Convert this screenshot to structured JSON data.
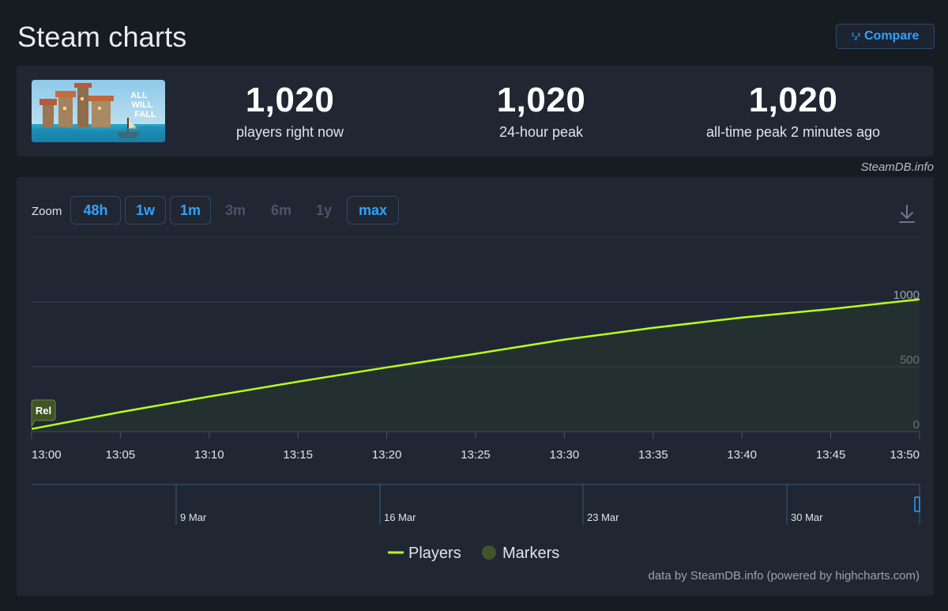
{
  "header": {
    "title": "Steam charts",
    "compare_label": "Compare",
    "compare_icon": "¹₂³"
  },
  "stats": [
    {
      "value": "1,020",
      "label": "players right now"
    },
    {
      "value": "1,020",
      "label": "24-hour peak"
    },
    {
      "value": "1,020",
      "label": "all-time peak 2 minutes ago"
    }
  ],
  "game": {
    "logo_text": [
      "ALL",
      "WILL",
      "FALL"
    ]
  },
  "brand": "SteamDB.info",
  "zoom": {
    "label": "Zoom",
    "buttons": [
      {
        "label": "48h",
        "enabled": true
      },
      {
        "label": "1w",
        "enabled": true
      },
      {
        "label": "1m",
        "enabled": true
      },
      {
        "label": "3m",
        "enabled": false
      },
      {
        "label": "6m",
        "enabled": false
      },
      {
        "label": "1y",
        "enabled": false
      },
      {
        "label": "max",
        "enabled": true
      }
    ]
  },
  "chart_data": {
    "type": "area",
    "x": [
      "13:00",
      "13:05",
      "13:10",
      "13:15",
      "13:20",
      "13:25",
      "13:30",
      "13:35",
      "13:40",
      "13:45",
      "13:50"
    ],
    "series": [
      {
        "name": "Players",
        "values": [
          20,
          150,
          270,
          385,
          495,
          600,
          710,
          800,
          880,
          945,
          1020
        ],
        "color": "#b7ff1e"
      }
    ],
    "ylim": [
      0,
      1000
    ],
    "yticks": [
      "0",
      "500",
      "1000"
    ],
    "marker": {
      "label": "Rel",
      "x": "13:00"
    },
    "navigator_labels": [
      "9 Mar",
      "16 Mar",
      "23 Mar",
      "30 Mar"
    ],
    "legend": [
      {
        "label": "Players",
        "color": "#b7ff1e"
      },
      {
        "label": "Markers",
        "color": "#3f5528"
      }
    ],
    "grid": true,
    "legend_position": "bottom"
  },
  "footer_caption": "data by SteamDB.info (powered by highcharts.com)"
}
